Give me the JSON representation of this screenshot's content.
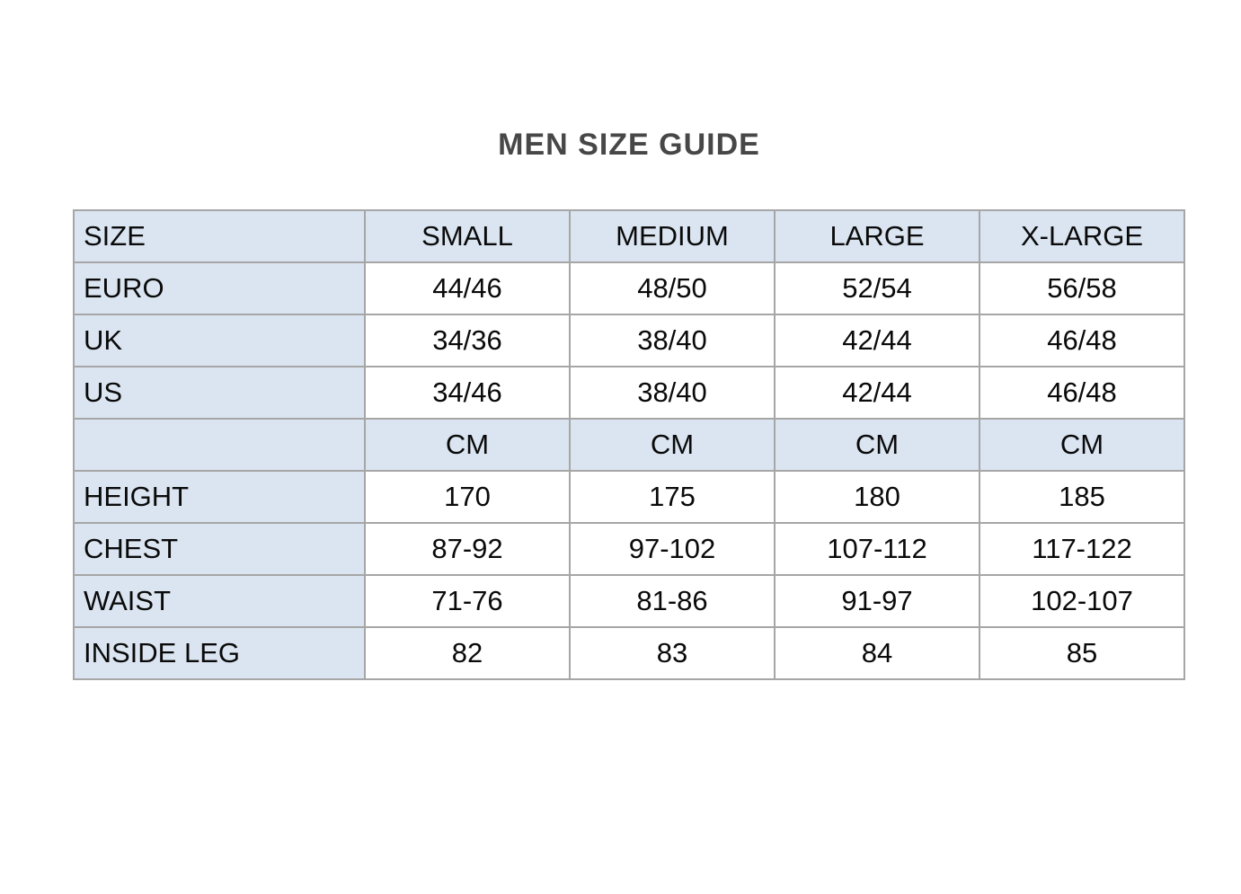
{
  "page": {
    "title": "MEN SIZE GUIDE"
  },
  "table": {
    "columns": [
      "SIZE",
      "SMALL",
      "MEDIUM",
      "LARGE",
      "X-LARGE"
    ],
    "rows": [
      {
        "label": "EURO",
        "unit_row": false,
        "values": [
          "44/46",
          "48/50",
          "52/54",
          "56/58"
        ]
      },
      {
        "label": "UK",
        "unit_row": false,
        "values": [
          "34/36",
          "38/40",
          "42/44",
          "46/48"
        ]
      },
      {
        "label": "US",
        "unit_row": false,
        "values": [
          "34/46",
          "38/40",
          "42/44",
          "46/48"
        ]
      },
      {
        "label": "",
        "unit_row": true,
        "values": [
          "CM",
          "CM",
          "CM",
          "CM"
        ]
      },
      {
        "label": "HEIGHT",
        "unit_row": false,
        "values": [
          "170",
          "175",
          "180",
          "185"
        ]
      },
      {
        "label": "CHEST",
        "unit_row": false,
        "values": [
          "87-92",
          "97-102",
          "107-112",
          "117-122"
        ]
      },
      {
        "label": "WAIST",
        "unit_row": false,
        "values": [
          "71-76",
          "81-86",
          "91-97",
          "102-107"
        ]
      },
      {
        "label": "INSIDE LEG",
        "unit_row": false,
        "values": [
          "82",
          "83",
          "84",
          "85"
        ]
      }
    ]
  },
  "colors": {
    "header_bg": "#dbe5f1",
    "label_bg": "#dbe5f1",
    "cell_bg": "#ffffff",
    "border": "#a6a6a6",
    "title_text": "#474747",
    "cell_text": "#0a0a0a"
  }
}
